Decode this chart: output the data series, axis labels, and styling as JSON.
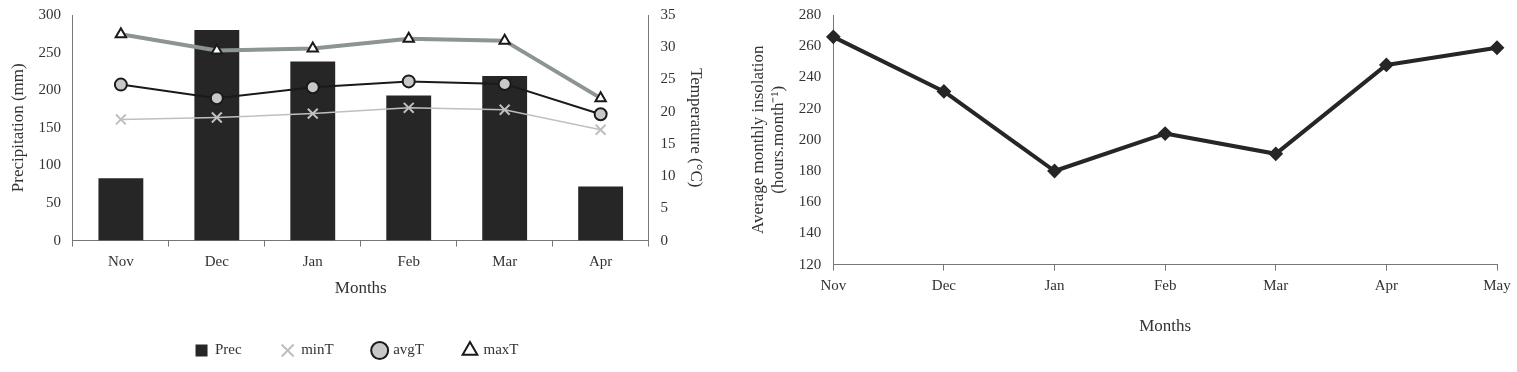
{
  "chart_data": [
    {
      "type": "bar",
      "categories": [
        "Nov",
        "Dec",
        "Jan",
        "Feb",
        "Mar",
        "Apr"
      ],
      "xlabel": "Months",
      "ylabel": "Precipitation (mm)",
      "y2label": "Temperature (°C)",
      "ylim": [
        0,
        300
      ],
      "yticks": [
        0,
        50,
        100,
        150,
        200,
        250,
        300
      ],
      "y2lim": [
        0,
        35
      ],
      "y2ticks": [
        0,
        5,
        10,
        15,
        20,
        25,
        30,
        35
      ],
      "grid": false,
      "legend": "bottom",
      "series": [
        {
          "name": "Prec",
          "type": "bar",
          "color": "#262626",
          "values": [
            83,
            280,
            238,
            193,
            219,
            72
          ]
        },
        {
          "name": "minT",
          "type": "line",
          "axis": "y2",
          "color": "#bfbfbf",
          "marker": "cross",
          "values": [
            18.8,
            19.1,
            19.7,
            20.6,
            20.3,
            17.2
          ]
        },
        {
          "name": "avgT",
          "type": "line",
          "axis": "y2",
          "color": "#1a1a1a",
          "marker": "circle",
          "values": [
            24.2,
            22.1,
            23.8,
            24.7,
            24.3,
            19.6
          ]
        },
        {
          "name": "maxT",
          "type": "line",
          "axis": "y2",
          "color": "#8c9590",
          "marker": "triangle",
          "values": [
            32,
            29.5,
            29.8,
            31.3,
            31,
            22.1
          ]
        }
      ]
    },
    {
      "type": "line",
      "categories": [
        "Nov",
        "Dec",
        "Jan",
        "Feb",
        "Mar",
        "Apr",
        "May"
      ],
      "xlabel": "Months",
      "ylabel": "Average monthly insolation (hours.month⁻¹)",
      "ylim": [
        120,
        280
      ],
      "yticks": [
        120,
        140,
        160,
        180,
        200,
        220,
        240,
        260,
        280
      ],
      "grid": false,
      "legend": false,
      "marker": "diamond",
      "series": [
        {
          "color": "#262626",
          "values": [
            266,
            231,
            180,
            204,
            191,
            248,
            259
          ]
        }
      ]
    }
  ]
}
